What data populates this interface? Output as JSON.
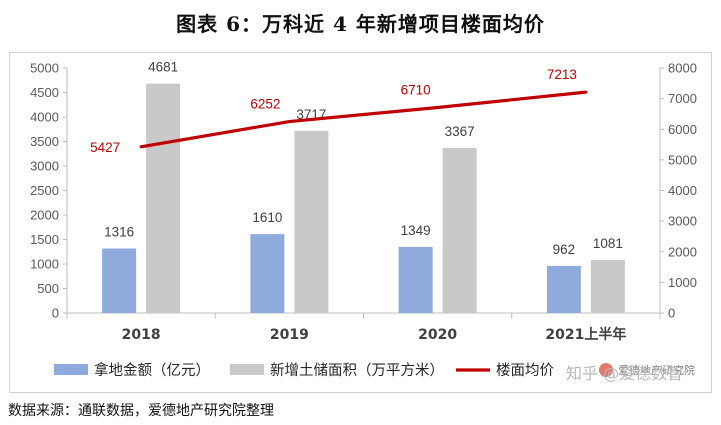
{
  "figure": {
    "title": "图表 6：万科近 4 年新增项目楼面均价",
    "source": "数据来源：通联数据，爱德地产研究院整理",
    "logo_text": "爱德地产研究院",
    "watermark": "知乎 @爱德数智"
  },
  "chart_data": {
    "type": "bar",
    "categories": [
      "2018",
      "2019",
      "2020",
      "2021上半年"
    ],
    "series": [
      {
        "name": "拿地金额（亿元）",
        "type": "bar",
        "axis": "left",
        "color": "#8faadc",
        "values": [
          1316,
          1610,
          1349,
          962
        ]
      },
      {
        "name": "新增土储面积（万平方米）",
        "type": "bar",
        "axis": "left",
        "color": "#c9c9c9",
        "values": [
          4681,
          3717,
          3367,
          1081
        ]
      },
      {
        "name": "楼面均价",
        "type": "line",
        "axis": "right",
        "color": "#c00000",
        "values": [
          5427,
          6252,
          6710,
          7213
        ]
      }
    ],
    "y_left": {
      "min": 0,
      "max": 5000,
      "step": 500,
      "ticks": [
        "0",
        "500",
        "1000",
        "1500",
        "2000",
        "2500",
        "3000",
        "3500",
        "4000",
        "4500",
        "5000"
      ]
    },
    "y_right": {
      "min": 0,
      "max": 8000,
      "step": 1000,
      "ticks": [
        "0",
        "1000",
        "2000",
        "3000",
        "4000",
        "5000",
        "6000",
        "7000",
        "8000"
      ]
    },
    "grid": false,
    "legend_position": "bottom"
  }
}
